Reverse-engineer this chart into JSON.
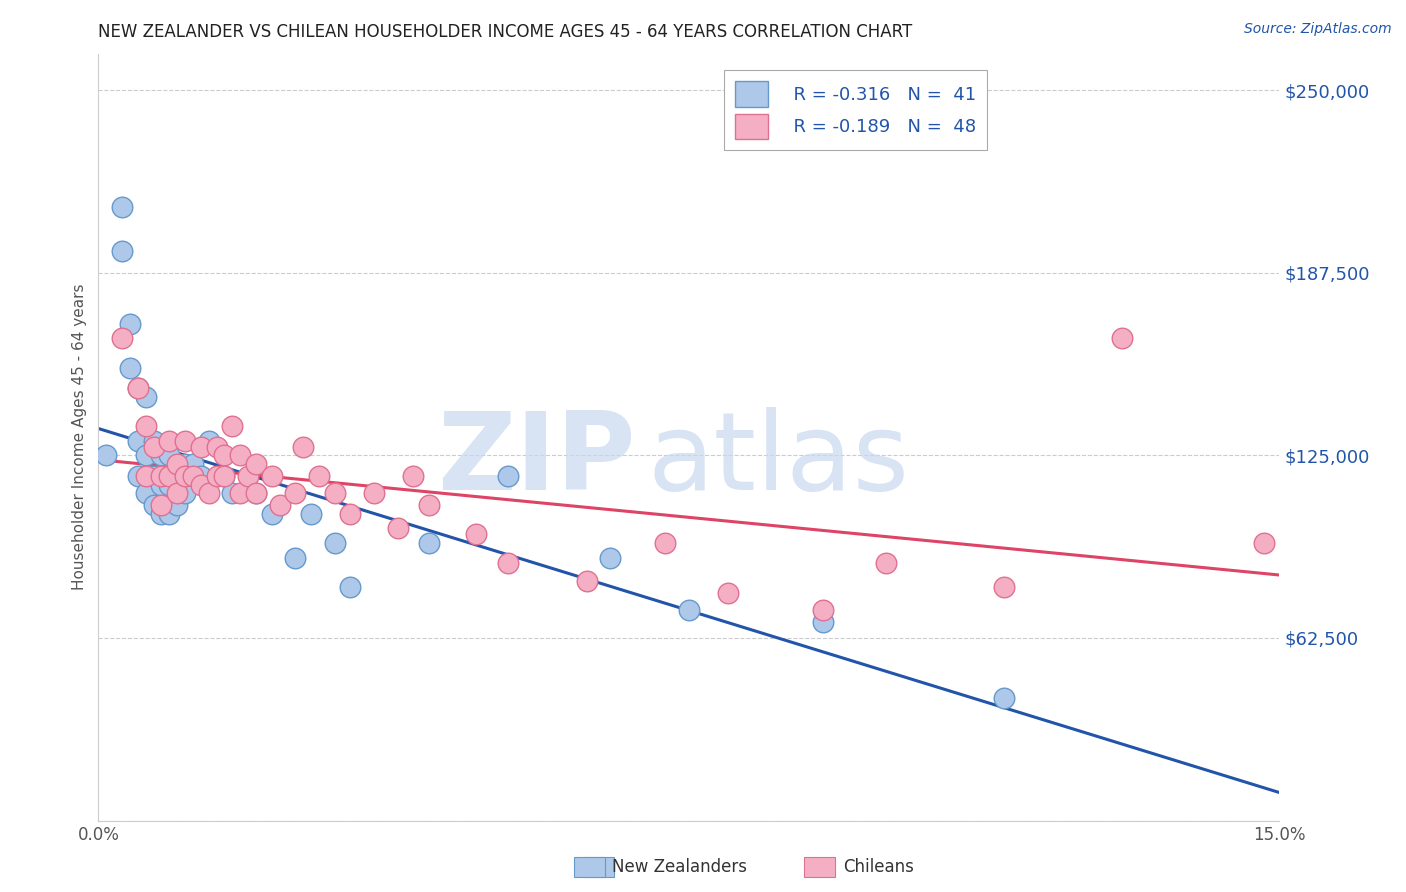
{
  "title": "NEW ZEALANDER VS CHILEAN HOUSEHOLDER INCOME AGES 45 - 64 YEARS CORRELATION CHART",
  "source": "Source: ZipAtlas.com",
  "ylabel": "Householder Income Ages 45 - 64 years",
  "xlim": [
    0.0,
    0.15
  ],
  "ylim": [
    0,
    262500
  ],
  "yticks": [
    0,
    62500,
    125000,
    187500,
    250000
  ],
  "ytick_labels": [
    "",
    "$62,500",
    "$125,000",
    "$187,500",
    "$250,000"
  ],
  "xtick_vals": [
    0.0,
    0.015,
    0.03,
    0.045,
    0.06,
    0.075,
    0.09,
    0.105,
    0.12,
    0.135,
    0.15
  ],
  "xtick_labels": [
    "0.0%",
    "",
    "",
    "",
    "",
    "",
    "",
    "",
    "",
    "",
    "15.0%"
  ],
  "legend_nz_r": "R = -0.316",
  "legend_nz_n": "N =  41",
  "legend_ch_r": "R = -0.189",
  "legend_ch_n": "N =  48",
  "nz_color": "#adc8e8",
  "nz_edge_color": "#6699cc",
  "ch_color": "#f5afc5",
  "ch_edge_color": "#e07090",
  "nz_line_color": "#2255aa",
  "ch_line_color": "#dd4466",
  "nz_x": [
    0.001,
    0.003,
    0.003,
    0.004,
    0.004,
    0.005,
    0.005,
    0.005,
    0.006,
    0.006,
    0.006,
    0.007,
    0.007,
    0.007,
    0.008,
    0.008,
    0.008,
    0.009,
    0.009,
    0.009,
    0.01,
    0.01,
    0.011,
    0.011,
    0.012,
    0.013,
    0.014,
    0.016,
    0.017,
    0.02,
    0.022,
    0.025,
    0.027,
    0.03,
    0.032,
    0.042,
    0.052,
    0.065,
    0.075,
    0.092,
    0.115
  ],
  "nz_y": [
    125000,
    210000,
    195000,
    155000,
    170000,
    148000,
    130000,
    118000,
    145000,
    125000,
    112000,
    130000,
    118000,
    108000,
    125000,
    115000,
    105000,
    125000,
    115000,
    105000,
    118000,
    108000,
    122000,
    112000,
    122000,
    118000,
    130000,
    118000,
    112000,
    112000,
    105000,
    90000,
    105000,
    95000,
    80000,
    95000,
    118000,
    90000,
    72000,
    68000,
    42000
  ],
  "ch_x": [
    0.003,
    0.005,
    0.006,
    0.006,
    0.007,
    0.008,
    0.008,
    0.009,
    0.009,
    0.01,
    0.01,
    0.011,
    0.011,
    0.012,
    0.013,
    0.013,
    0.014,
    0.015,
    0.015,
    0.016,
    0.016,
    0.017,
    0.018,
    0.018,
    0.019,
    0.02,
    0.02,
    0.022,
    0.023,
    0.025,
    0.026,
    0.028,
    0.03,
    0.032,
    0.035,
    0.038,
    0.04,
    0.042,
    0.048,
    0.052,
    0.062,
    0.072,
    0.08,
    0.092,
    0.1,
    0.115,
    0.13,
    0.148
  ],
  "ch_y": [
    165000,
    148000,
    135000,
    118000,
    128000,
    118000,
    108000,
    130000,
    118000,
    122000,
    112000,
    130000,
    118000,
    118000,
    128000,
    115000,
    112000,
    128000,
    118000,
    125000,
    118000,
    135000,
    125000,
    112000,
    118000,
    112000,
    122000,
    118000,
    108000,
    112000,
    128000,
    118000,
    112000,
    105000,
    112000,
    100000,
    118000,
    108000,
    98000,
    88000,
    82000,
    95000,
    78000,
    72000,
    88000,
    80000,
    165000,
    95000
  ]
}
